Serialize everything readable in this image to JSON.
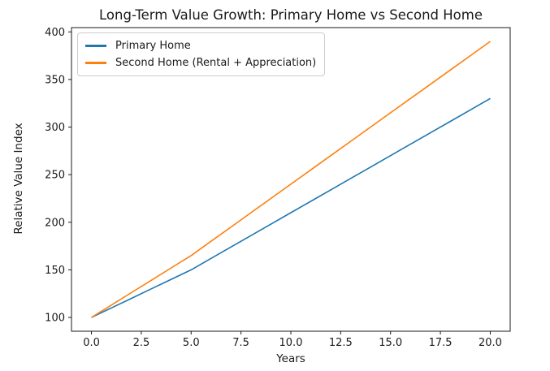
{
  "chart_data": {
    "type": "line",
    "title": "Long-Term Value Growth: Primary Home vs Second Home",
    "xlabel": "Years",
    "ylabel": "Relative Value Index",
    "x": [
      0,
      1,
      2,
      3,
      4,
      5,
      6,
      7,
      8,
      9,
      10,
      11,
      12,
      13,
      14,
      15,
      16,
      17,
      18,
      19,
      20
    ],
    "series": [
      {
        "name": "Primary Home",
        "color": "#1f77b4",
        "values": [
          100,
          110,
          120,
          130,
          140,
          150,
          162,
          174,
          186,
          198,
          210,
          222,
          234,
          246,
          258,
          270,
          282,
          294,
          306,
          318,
          330
        ]
      },
      {
        "name": "Second Home (Rental + Appreciation)",
        "color": "#ff7f0e",
        "values": [
          100,
          113,
          126,
          139,
          152,
          165,
          180,
          195,
          210,
          225,
          240,
          255,
          270,
          285,
          300,
          315,
          330,
          345,
          360,
          375,
          390
        ]
      }
    ],
    "x_tick_labels": [
      "0.0",
      "2.5",
      "5.0",
      "7.5",
      "10.0",
      "12.5",
      "15.0",
      "17.5",
      "20.0"
    ],
    "y_tick_labels": [
      "100",
      "150",
      "200",
      "250",
      "300",
      "350",
      "400"
    ],
    "xlim": [
      -1,
      21
    ],
    "ylim": [
      85.5,
      404.5
    ],
    "grid": false,
    "legend_position": "upper left",
    "axis_color": "#1a1a1a",
    "background_color": "#ffffff"
  }
}
